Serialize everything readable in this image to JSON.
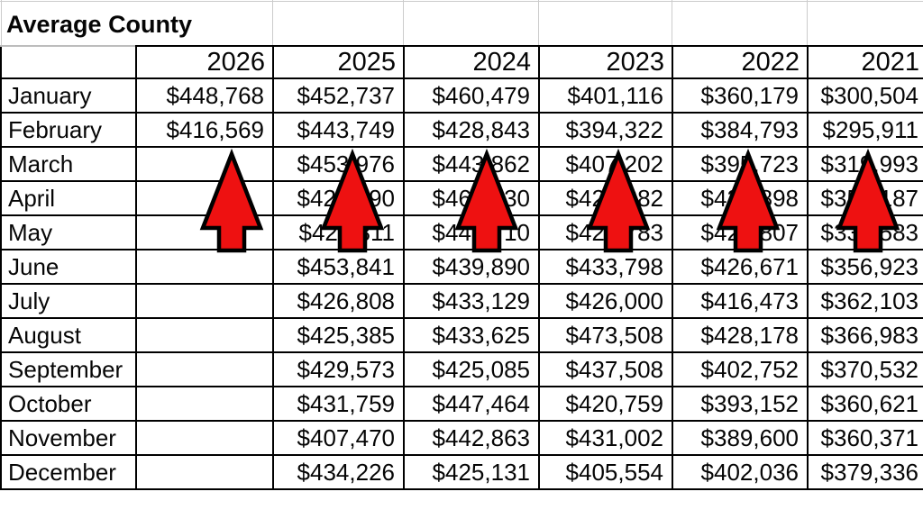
{
  "title": "Average County",
  "table": {
    "corner_label": "",
    "years": [
      "2026",
      "2025",
      "2024",
      "2023",
      "2022",
      "2021"
    ],
    "rows": [
      {
        "month": "January",
        "values": [
          "$448,768",
          "$452,737",
          "$460,479",
          "$401,116",
          "$360,179",
          "$300,504"
        ]
      },
      {
        "month": "February",
        "values": [
          "$416,569",
          "$443,749",
          "$428,843",
          "$394,322",
          "$384,793",
          "$295,911"
        ]
      },
      {
        "month": "March",
        "values": [
          "",
          "$453,976",
          "$443,862",
          "$407,202",
          "$395,723",
          "$319,993"
        ]
      },
      {
        "month": "April",
        "values": [
          "",
          "$427,890",
          "$464,430",
          "$421,882",
          "$420,898",
          "$353,187"
        ]
      },
      {
        "month": "May",
        "values": [
          "",
          "$425,811",
          "$448,710",
          "$427,783",
          "$426,807",
          "$330,583"
        ]
      },
      {
        "month": "June",
        "values": [
          "",
          "$453,841",
          "$439,890",
          "$433,798",
          "$426,671",
          "$356,923"
        ]
      },
      {
        "month": "July",
        "values": [
          "",
          "$426,808",
          "$433,129",
          "$426,000",
          "$416,473",
          "$362,103"
        ]
      },
      {
        "month": "August",
        "values": [
          "",
          "$425,385",
          "$433,625",
          "$473,508",
          "$428,178",
          "$366,983"
        ]
      },
      {
        "month": "September",
        "values": [
          "",
          "$429,573",
          "$425,085",
          "$437,508",
          "$402,752",
          "$370,532"
        ]
      },
      {
        "month": "October",
        "values": [
          "",
          "$431,759",
          "$447,464",
          "$420,759",
          "$393,152",
          "$360,621"
        ]
      },
      {
        "month": "November",
        "values": [
          "",
          "$407,470",
          "$442,863",
          "$431,002",
          "$389,600",
          "$360,371"
        ]
      },
      {
        "month": "December",
        "values": [
          "",
          "$434,226",
          "$425,131",
          "$405,554",
          "$402,036",
          "$379,336"
        ]
      }
    ]
  },
  "annotations": {
    "arrows": {
      "count": 6,
      "direction": "up",
      "points_at_columns": [
        "2026",
        "2025",
        "2024",
        "2023",
        "2022",
        "2021"
      ]
    }
  },
  "colors": {
    "background": "#ffffff",
    "text": "#060606",
    "grid_border": "#000000",
    "faint_gridline": "#cccccc",
    "arrow_fill": "#ee1111",
    "arrow_outline": "#000000"
  },
  "chart_data": {
    "type": "table",
    "title": "Average County",
    "categories": [
      "January",
      "February",
      "March",
      "April",
      "May",
      "June",
      "July",
      "August",
      "September",
      "October",
      "November",
      "December"
    ],
    "series": [
      {
        "name": "2026",
        "values": [
          448768,
          416569,
          null,
          null,
          null,
          null,
          null,
          null,
          null,
          null,
          null,
          null
        ]
      },
      {
        "name": "2025",
        "values": [
          452737,
          443749,
          453976,
          427890,
          425811,
          453841,
          426808,
          425385,
          429573,
          431759,
          407470,
          434226
        ]
      },
      {
        "name": "2024",
        "values": [
          460479,
          428843,
          443862,
          464430,
          448710,
          439890,
          433129,
          433625,
          425085,
          447464,
          442863,
          425131
        ]
      },
      {
        "name": "2023",
        "values": [
          401116,
          394322,
          407202,
          421882,
          427783,
          433798,
          426000,
          473508,
          437508,
          420759,
          431002,
          405554
        ]
      },
      {
        "name": "2022",
        "values": [
          360179,
          384793,
          395723,
          420898,
          426807,
          426671,
          416473,
          428178,
          402752,
          393152,
          389600,
          402036
        ]
      },
      {
        "name": "2021",
        "values": [
          300504,
          295911,
          319993,
          353187,
          330583,
          356923,
          362103,
          366983,
          370532,
          360621,
          360371,
          379336
        ]
      }
    ]
  }
}
